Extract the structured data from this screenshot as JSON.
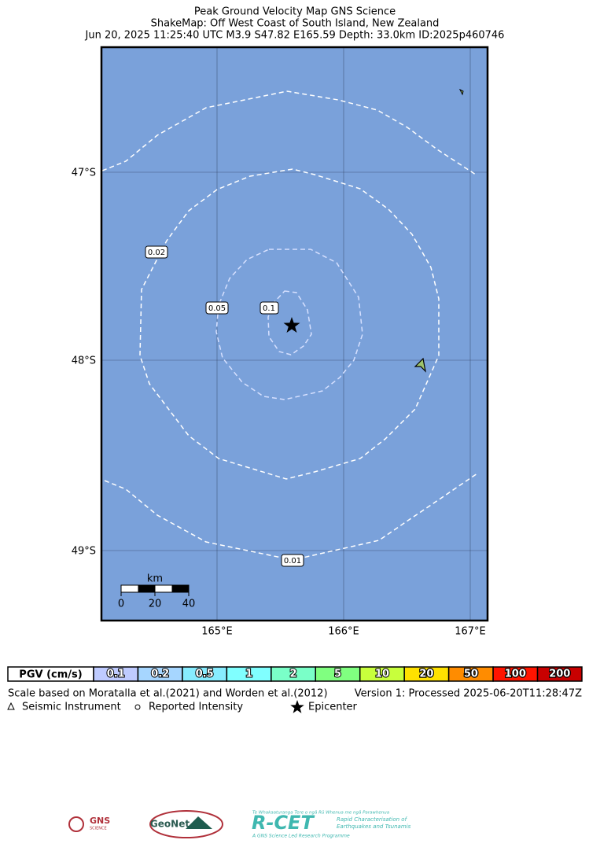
{
  "header": {
    "title": [
      "Peak Ground Velocity Map GNS Science",
      "ShakeMap: Off West Coast of South Island, New Zealand",
      "Jun 20, 2025 11:25:40 UTC M3.9 S47.82 E165.59 Depth: 33.0km ID:2025p460746"
    ]
  },
  "map": {
    "lat_labels": [
      "47°S",
      "48°S",
      "49°S"
    ],
    "lon_labels": [
      "165°E",
      "166°E",
      "167°E"
    ],
    "contour_labels": [
      "0.02",
      "0.05",
      "0.1",
      "0.01"
    ],
    "scale_bar": {
      "unit": "km",
      "labels": [
        "0",
        "20",
        "40"
      ]
    }
  },
  "legend": {
    "title": "PGV (cm/s)",
    "items": [
      {
        "label": "0.1",
        "color": "#bfcbff"
      },
      {
        "label": "0.2",
        "color": "#a6d6ff"
      },
      {
        "label": "0.5",
        "color": "#87ecff"
      },
      {
        "label": "1",
        "color": "#80ffff"
      },
      {
        "label": "2",
        "color": "#7affc8"
      },
      {
        "label": "5",
        "color": "#80ff80"
      },
      {
        "label": "10",
        "color": "#c8ff3c"
      },
      {
        "label": "20",
        "color": "#ffe100"
      },
      {
        "label": "50",
        "color": "#ff8c00"
      },
      {
        "label": "100",
        "color": "#ff1400"
      },
      {
        "label": "200",
        "color": "#c80000"
      }
    ]
  },
  "footer": {
    "scale_note": "Scale based on Moratalla et al.(2021) and Worden et al.(2012)",
    "version": "Version 1: Processed 2025-06-20T11:28:47Z",
    "symbols": [
      "Seismic Instrument",
      "Reported Intensity",
      "Epicenter"
    ]
  },
  "logos": {
    "gns": "GNS",
    "gns_sub": "SCIENCE",
    "geonet": "GeoNet",
    "rcet": "R-CET",
    "rcet_top": "Te Whakaaturanga Tere o ngā Rū Whenua me ngā Parawhenua",
    "rcet_side": [
      "Rapid Characterisation of",
      "Earthquakes and Tsunamis"
    ],
    "rcet_bottom": "A GNS Science Led Research Programme"
  }
}
